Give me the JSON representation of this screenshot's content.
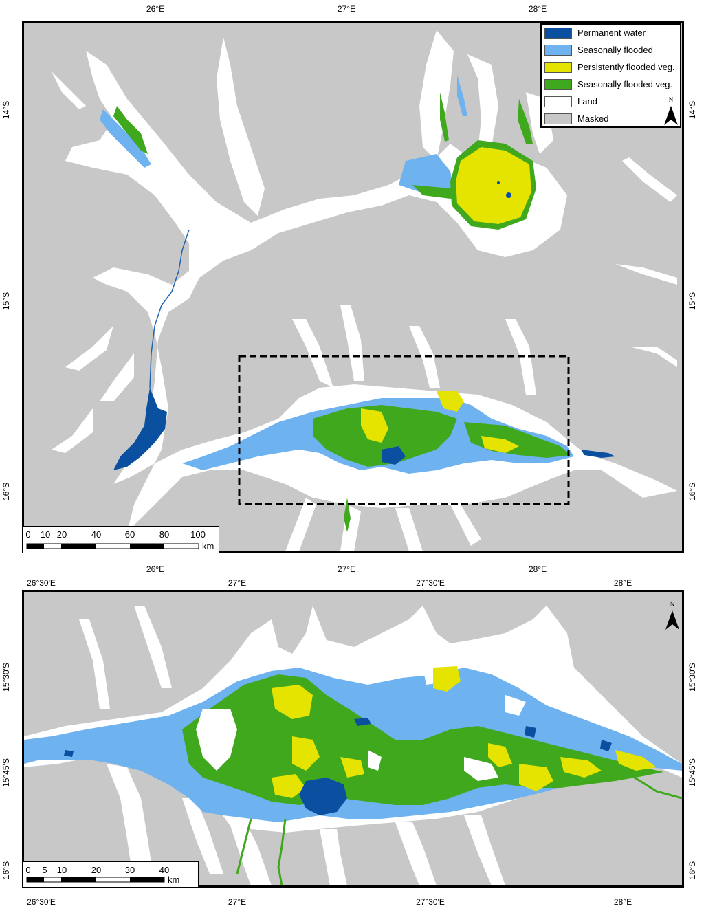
{
  "top_map": {
    "x_ticks_top": [
      "26°E",
      "27°E",
      "28°E"
    ],
    "x_ticks_bottom": [
      "26°E",
      "27°E",
      "28°E"
    ],
    "y_ticks_left": [
      "14°S",
      "15°S",
      "16°S"
    ],
    "y_ticks_right": [
      "14°S",
      "15°S",
      "16°S"
    ],
    "legend": [
      {
        "label": "Permanent water",
        "color": "#0a4fa0"
      },
      {
        "label": "Seasonally flooded",
        "color": "#6fb2f0"
      },
      {
        "label": "Persistently flooded veg.",
        "color": "#e4e400"
      },
      {
        "label": "Seasonally flooded veg.",
        "color": "#3fa81c"
      },
      {
        "label": "Land",
        "color": "#ffffff"
      },
      {
        "label": "Masked",
        "color": "#c8c8c8"
      }
    ],
    "scalebar": {
      "numbers": [
        "0",
        "10",
        "20",
        "40",
        "60",
        "80",
        "100"
      ],
      "unit": "km"
    },
    "north_letter": "N"
  },
  "bottom_map": {
    "x_ticks_top": [
      "26°30'E",
      "27°E",
      "27°30'E",
      "28°E"
    ],
    "x_ticks_bottom": [
      "26°30'E",
      "27°E",
      "27°30'E",
      "28°E"
    ],
    "y_ticks_left": [
      "15°30'S",
      "15°45'S",
      "16°S"
    ],
    "y_ticks_right": [
      "15°30'S",
      "15°45'S",
      "16°S"
    ],
    "scalebar": {
      "numbers": [
        "0",
        "5",
        "10",
        "20",
        "30",
        "40"
      ],
      "unit": "km"
    },
    "north_letter": "N"
  },
  "colors": {
    "masked": "#c8c8c8",
    "land": "#ffffff",
    "permanent_water": "#0a4fa0",
    "seasonally_flooded": "#6fb2f0",
    "persistently_flooded_veg": "#e4e400",
    "seasonally_flooded_veg": "#3fa81c"
  }
}
